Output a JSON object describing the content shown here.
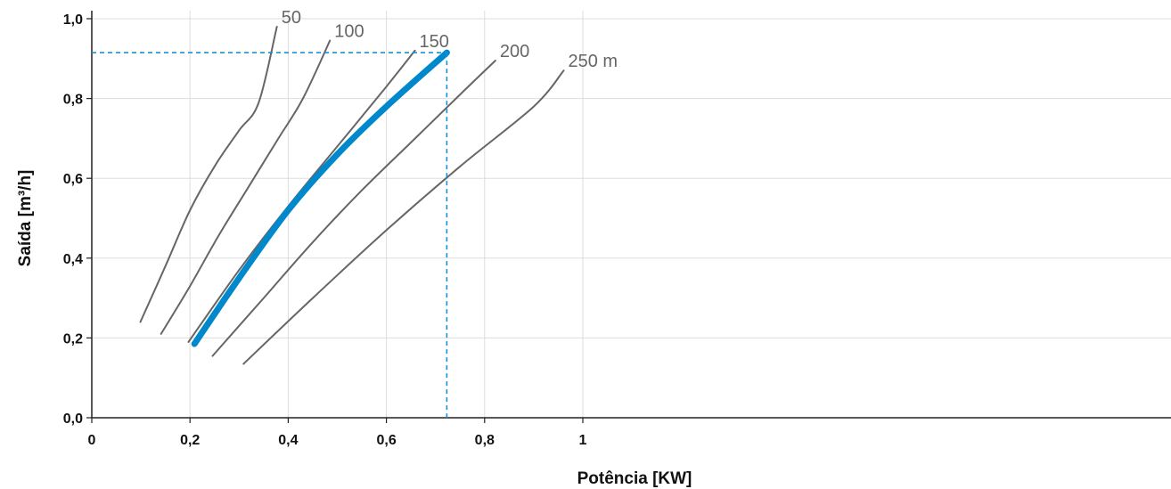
{
  "chart_data": {
    "type": "line",
    "title": "",
    "xlabel": "Potência [KW]",
    "ylabel": "Saída [m³/h]",
    "xlim": [
      0,
      1.1
    ],
    "ylim": [
      0,
      1.0
    ],
    "x_ticks": [
      {
        "value": 0,
        "label": "0"
      },
      {
        "value": 0.2,
        "label": "0,2"
      },
      {
        "value": 0.4,
        "label": "0,4"
      },
      {
        "value": 0.6,
        "label": "0,6"
      },
      {
        "value": 0.8,
        "label": "0,8"
      },
      {
        "value": 1.0,
        "label": "1"
      }
    ],
    "y_ticks": [
      {
        "value": 0,
        "label": "0,0"
      },
      {
        "value": 0.2,
        "label": "0,2"
      },
      {
        "value": 0.4,
        "label": "0,4"
      },
      {
        "value": 0.6,
        "label": "0,6"
      },
      {
        "value": 0.8,
        "label": "0,8"
      },
      {
        "value": 1.0,
        "label": "1,0"
      }
    ],
    "grid": true,
    "series": [
      {
        "label": "50",
        "color": "#666666",
        "highlight": false,
        "points": [
          [
            0.099,
            0.24
          ],
          [
            0.15,
            0.38
          ],
          [
            0.2,
            0.52
          ],
          [
            0.25,
            0.63
          ],
          [
            0.3,
            0.72
          ],
          [
            0.34,
            0.79
          ],
          [
            0.377,
            0.98
          ]
        ]
      },
      {
        "label": "100",
        "color": "#666666",
        "highlight": false,
        "points": [
          [
            0.141,
            0.21
          ],
          [
            0.2,
            0.33
          ],
          [
            0.26,
            0.46
          ],
          [
            0.32,
            0.58
          ],
          [
            0.38,
            0.7
          ],
          [
            0.43,
            0.8
          ],
          [
            0.485,
            0.945
          ]
        ]
      },
      {
        "label": "150",
        "color": "#666666",
        "highlight": false,
        "points": [
          [
            0.197,
            0.19
          ],
          [
            0.3,
            0.37
          ],
          [
            0.4,
            0.53
          ],
          [
            0.5,
            0.68
          ],
          [
            0.6,
            0.83
          ],
          [
            0.658,
            0.92
          ]
        ]
      },
      {
        "label": "200",
        "color": "#666666",
        "highlight": false,
        "points": [
          [
            0.246,
            0.155
          ],
          [
            0.35,
            0.3
          ],
          [
            0.45,
            0.44
          ],
          [
            0.55,
            0.57
          ],
          [
            0.65,
            0.69
          ],
          [
            0.75,
            0.81
          ],
          [
            0.822,
            0.895
          ]
        ]
      },
      {
        "label": "250 m",
        "color": "#666666",
        "highlight": false,
        "points": [
          [
            0.309,
            0.135
          ],
          [
            0.45,
            0.3
          ],
          [
            0.6,
            0.47
          ],
          [
            0.75,
            0.63
          ],
          [
            0.9,
            0.78
          ],
          [
            0.961,
            0.87
          ]
        ]
      },
      {
        "label": "",
        "color": "#0088cc",
        "highlight": true,
        "points": [
          [
            0.209,
            0.185
          ],
          [
            0.3,
            0.35
          ],
          [
            0.4,
            0.52
          ],
          [
            0.5,
            0.66
          ],
          [
            0.6,
            0.78
          ],
          [
            0.723,
            0.915
          ]
        ]
      }
    ],
    "operating_point": {
      "x": 0.723,
      "y": 0.915,
      "color": "#1a8fd6"
    },
    "grid_color": "#dddddd",
    "axis_color": "#222222"
  }
}
